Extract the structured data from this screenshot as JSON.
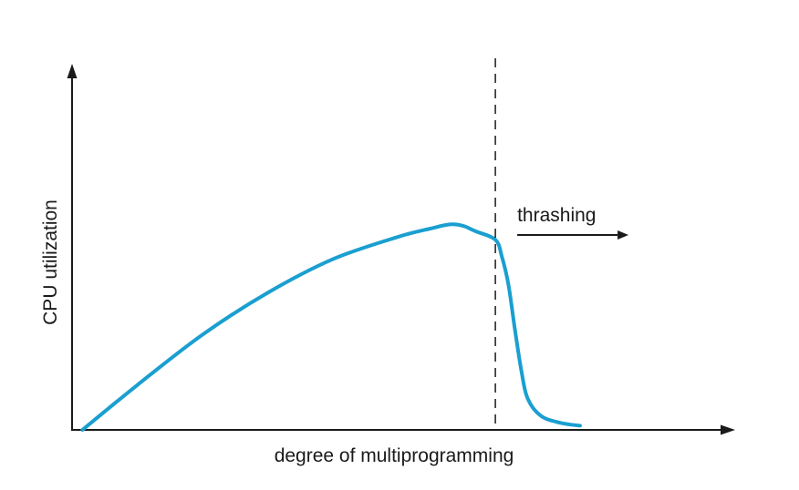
{
  "chart_data": {
    "type": "line",
    "title": "",
    "xlabel": "degree of multiprogramming",
    "ylabel": "CPU utilization",
    "grid": false,
    "xlim": [
      0,
      100
    ],
    "ylim": [
      0,
      100
    ],
    "colors": {
      "curve": "#1a9fd0",
      "axis": "#1a1a1a"
    },
    "series": [
      {
        "name": "",
        "x": [
          1.6,
          10,
          20,
          30,
          40,
          50,
          55,
          58,
          60,
          62,
          65,
          66,
          67,
          68,
          69,
          70,
          72,
          75,
          78
        ],
        "y": [
          0,
          16,
          34,
          49,
          61,
          69,
          72,
          73.5,
          73,
          71,
          68,
          62,
          52,
          36,
          21,
          11,
          5,
          2.5,
          1.5
        ]
      }
    ],
    "threshold": {
      "x": 65
    },
    "annotation": {
      "text": "thrashing",
      "direction": "right"
    }
  }
}
